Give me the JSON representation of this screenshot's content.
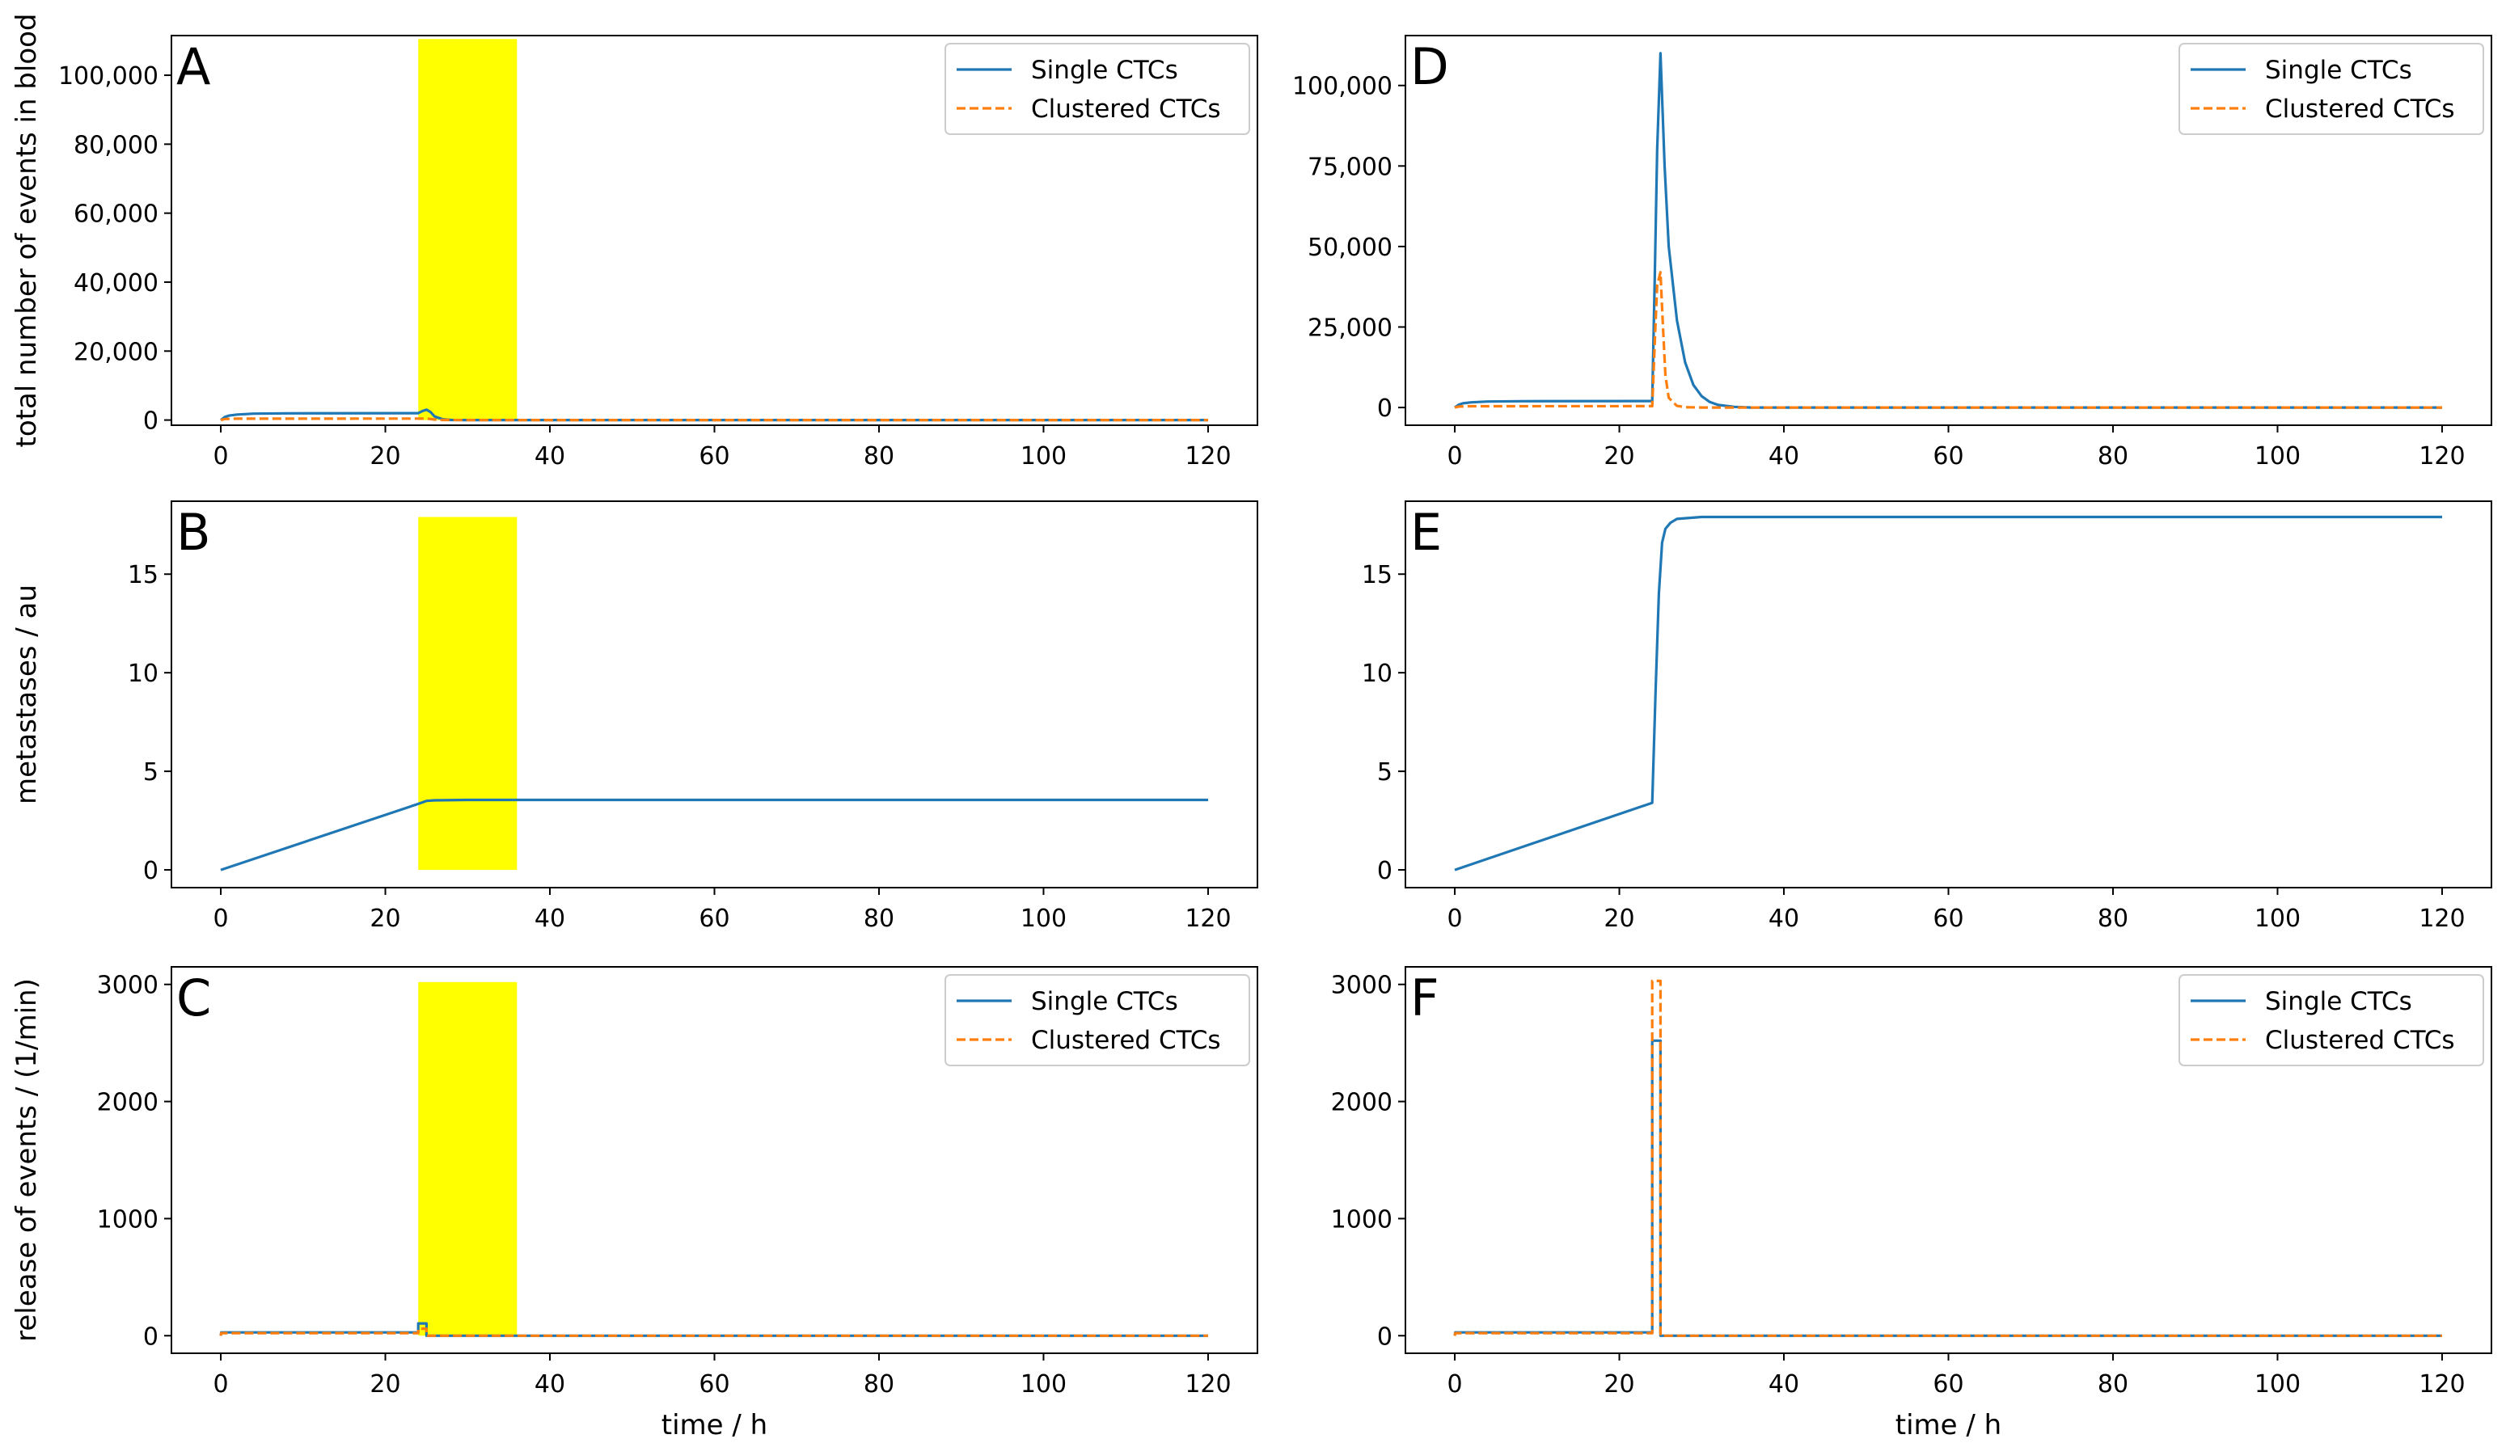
{
  "chart_data": [
    {
      "panel": "A",
      "type": "line",
      "ylabel": "total number of events in blood",
      "xlabel": "",
      "xlim": [
        -6,
        126
      ],
      "ylim": [
        -1500,
        111500
      ],
      "xticks": [
        0,
        20,
        40,
        60,
        80,
        100,
        120
      ],
      "yticks": [
        0,
        20000,
        40000,
        60000,
        80000,
        100000
      ],
      "ytick_labels": [
        "0",
        "20,000",
        "40,000",
        "60,000",
        "80,000",
        "100,000"
      ],
      "highlight": {
        "x_start": 24,
        "x_end": 36,
        "y_start": 0,
        "y_end": 110500,
        "color": "#ffff00"
      },
      "legend": {
        "placement": "top-right",
        "entries": [
          "Single CTCs",
          "Clustered CTCs"
        ]
      },
      "series": [
        {
          "name": "Single CTCs",
          "color": "#1f77b4",
          "dash": "solid",
          "points": [
            [
              0,
              0
            ],
            [
              0.5,
              900
            ],
            [
              1,
              1300
            ],
            [
              2,
              1600
            ],
            [
              4,
              1850
            ],
            [
              8,
              1950
            ],
            [
              24,
              2000
            ],
            [
              24.5,
              2600
            ],
            [
              25,
              3000
            ],
            [
              25.5,
              2300
            ],
            [
              26,
              1000
            ],
            [
              27,
              200
            ],
            [
              28,
              30
            ],
            [
              30,
              0
            ],
            [
              120,
              0
            ]
          ]
        },
        {
          "name": "Clustered CTCs",
          "color": "#ff7f0e",
          "dash": "dashed",
          "points": [
            [
              0,
              0
            ],
            [
              0.5,
              300
            ],
            [
              2,
              400
            ],
            [
              24,
              420
            ],
            [
              25,
              450
            ],
            [
              26,
              150
            ],
            [
              27,
              20
            ],
            [
              30,
              0
            ],
            [
              120,
              0
            ]
          ]
        }
      ]
    },
    {
      "panel": "B",
      "type": "line",
      "ylabel": "metastases / au",
      "xlabel": "",
      "xlim": [
        -6,
        126
      ],
      "ylim": [
        -0.9,
        18.7
      ],
      "xticks": [
        0,
        20,
        40,
        60,
        80,
        100,
        120
      ],
      "yticks": [
        0,
        5,
        10,
        15
      ],
      "ytick_labels": [
        "0",
        "5",
        "10",
        "15"
      ],
      "highlight": {
        "x_start": 24,
        "x_end": 36,
        "y_start": 0,
        "y_end": 17.9,
        "color": "#ffff00"
      },
      "legend": null,
      "series": [
        {
          "name": "",
          "color": "#1f77b4",
          "dash": "solid",
          "points": [
            [
              0,
              0
            ],
            [
              24,
              3.35
            ],
            [
              25,
              3.5
            ],
            [
              26,
              3.53
            ],
            [
              30,
              3.55
            ],
            [
              120,
              3.55
            ]
          ]
        }
      ]
    },
    {
      "panel": "C",
      "type": "line",
      "ylabel": "release of events / (1/min)",
      "xlabel": "time / h",
      "xlim": [
        -6,
        126
      ],
      "ylim": [
        -150,
        3150
      ],
      "xticks": [
        0,
        20,
        40,
        60,
        80,
        100,
        120
      ],
      "yticks": [
        0,
        1000,
        2000,
        3000
      ],
      "ytick_labels": [
        "0",
        "1000",
        "2000",
        "3000"
      ],
      "highlight": {
        "x_start": 24,
        "x_end": 36,
        "y_start": 0,
        "y_end": 3020,
        "color": "#ffff00"
      },
      "legend": {
        "placement": "top-right",
        "entries": [
          "Single CTCs",
          "Clustered CTCs"
        ]
      },
      "series": [
        {
          "name": "Single CTCs",
          "color": "#1f77b4",
          "dash": "solid",
          "points": [
            [
              0,
              0
            ],
            [
              0.05,
              28
            ],
            [
              24,
              28
            ],
            [
              24,
              105
            ],
            [
              25,
              105
            ],
            [
              25,
              0
            ],
            [
              120,
              0
            ]
          ]
        },
        {
          "name": "Clustered CTCs",
          "color": "#ff7f0e",
          "dash": "dashed",
          "points": [
            [
              0,
              0
            ],
            [
              0.05,
              22
            ],
            [
              24,
              22
            ],
            [
              24,
              60
            ],
            [
              25,
              60
            ],
            [
              25,
              0
            ],
            [
              120,
              0
            ]
          ]
        }
      ]
    },
    {
      "panel": "D",
      "type": "line",
      "ylabel": "",
      "xlabel": "",
      "xlim": [
        -6,
        126
      ],
      "ylim": [
        -5500,
        115500
      ],
      "xticks": [
        0,
        20,
        40,
        60,
        80,
        100,
        120
      ],
      "yticks": [
        0,
        25000,
        50000,
        75000,
        100000
      ],
      "ytick_labels": [
        "0",
        "25,000",
        "50,000",
        "75,000",
        "100,000"
      ],
      "highlight": null,
      "legend": {
        "placement": "top-right",
        "entries": [
          "Single CTCs",
          "Clustered CTCs"
        ]
      },
      "series": [
        {
          "name": "Single CTCs",
          "color": "#1f77b4",
          "dash": "solid",
          "points": [
            [
              0,
              0
            ],
            [
              0.5,
              900
            ],
            [
              1,
              1300
            ],
            [
              2,
              1600
            ],
            [
              4,
              1850
            ],
            [
              8,
              1950
            ],
            [
              24,
              2000
            ],
            [
              24.3,
              40000
            ],
            [
              24.6,
              80000
            ],
            [
              25,
              110000
            ],
            [
              25.5,
              75000
            ],
            [
              26,
              50000
            ],
            [
              27,
              27000
            ],
            [
              28,
              14000
            ],
            [
              29,
              7000
            ],
            [
              30,
              3500
            ],
            [
              31,
              1700
            ],
            [
              32,
              800
            ],
            [
              34,
              200
            ],
            [
              36,
              0
            ],
            [
              120,
              0
            ]
          ]
        },
        {
          "name": "Clustered CTCs",
          "color": "#ff7f0e",
          "dash": "dashed",
          "points": [
            [
              0,
              0
            ],
            [
              0.5,
              300
            ],
            [
              2,
              400
            ],
            [
              24,
              420
            ],
            [
              24.3,
              20000
            ],
            [
              24.6,
              38000
            ],
            [
              25,
              42000
            ],
            [
              25.3,
              25000
            ],
            [
              25.6,
              10000
            ],
            [
              26,
              3000
            ],
            [
              27,
              500
            ],
            [
              28,
              100
            ],
            [
              30,
              0
            ],
            [
              120,
              0
            ]
          ]
        }
      ]
    },
    {
      "panel": "E",
      "type": "line",
      "ylabel": "",
      "xlabel": "",
      "xlim": [
        -6,
        126
      ],
      "ylim": [
        -0.9,
        18.7
      ],
      "xticks": [
        0,
        20,
        40,
        60,
        80,
        100,
        120
      ],
      "yticks": [
        0,
        5,
        10,
        15
      ],
      "ytick_labels": [
        "0",
        "5",
        "10",
        "15"
      ],
      "highlight": null,
      "legend": null,
      "series": [
        {
          "name": "",
          "color": "#1f77b4",
          "dash": "solid",
          "points": [
            [
              0,
              0
            ],
            [
              24,
              3.4
            ],
            [
              24.4,
              9
            ],
            [
              24.8,
              14
            ],
            [
              25.2,
              16.6
            ],
            [
              25.6,
              17.3
            ],
            [
              26.2,
              17.6
            ],
            [
              27,
              17.8
            ],
            [
              30,
              17.9
            ],
            [
              120,
              17.9
            ]
          ]
        }
      ]
    },
    {
      "panel": "F",
      "type": "line",
      "ylabel": "",
      "xlabel": "time / h",
      "xlim": [
        -6,
        126
      ],
      "ylim": [
        -150,
        3150
      ],
      "xticks": [
        0,
        20,
        40,
        60,
        80,
        100,
        120
      ],
      "yticks": [
        0,
        1000,
        2000,
        3000
      ],
      "ytick_labels": [
        "0",
        "1000",
        "2000",
        "3000"
      ],
      "highlight": null,
      "legend": {
        "placement": "top-right",
        "entries": [
          "Single CTCs",
          "Clustered CTCs"
        ]
      },
      "series": [
        {
          "name": "Single CTCs",
          "color": "#1f77b4",
          "dash": "solid",
          "points": [
            [
              0,
              0
            ],
            [
              0.05,
              28
            ],
            [
              24,
              28
            ],
            [
              24,
              2520
            ],
            [
              25,
              2520
            ],
            [
              25,
              0
            ],
            [
              120,
              0
            ]
          ]
        },
        {
          "name": "Clustered CTCs",
          "color": "#ff7f0e",
          "dash": "dashed",
          "points": [
            [
              0,
              0
            ],
            [
              0.05,
              22
            ],
            [
              24,
              22
            ],
            [
              24,
              3030
            ],
            [
              25,
              3030
            ],
            [
              25,
              0
            ],
            [
              120,
              0
            ]
          ]
        }
      ]
    }
  ]
}
